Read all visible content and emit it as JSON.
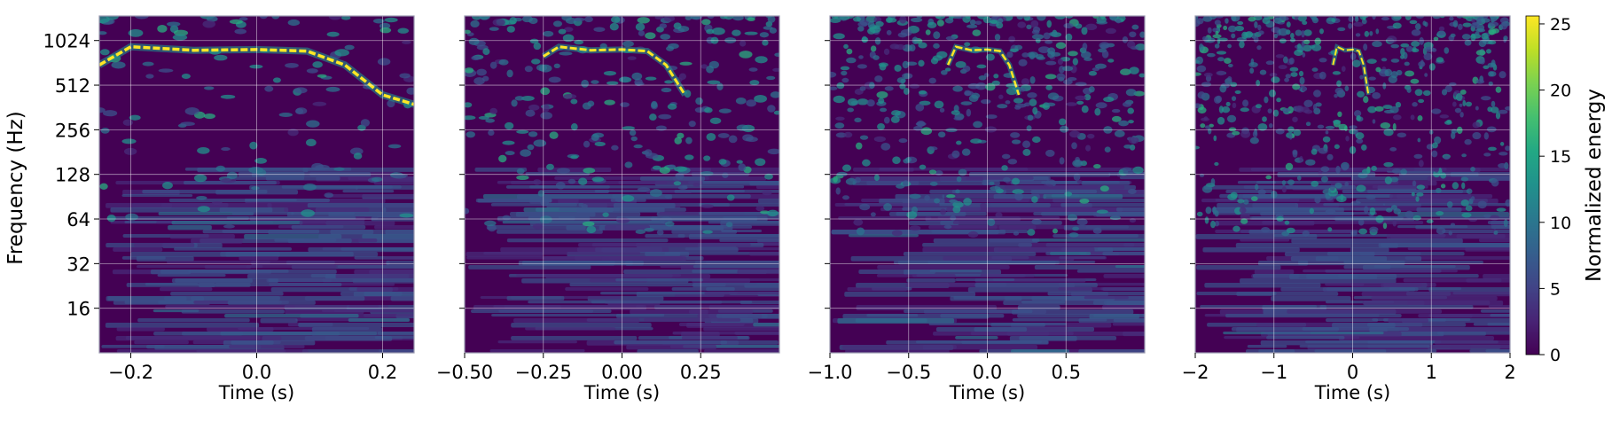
{
  "chart_data": {
    "type": "heatmap",
    "shared": {
      "ylabel": "Frequency (Hz)",
      "ylog_base": 2,
      "ylim": [
        8,
        1500
      ],
      "yticks": [
        16,
        32,
        64,
        128,
        256,
        512,
        1024
      ],
      "grid": true,
      "colormap": "viridis",
      "colorbar": {
        "label": "Normalized energy",
        "range": [
          0,
          25.6
        ],
        "ticks": [
          0,
          5,
          10,
          15,
          20,
          25
        ]
      }
    },
    "panels": [
      {
        "xlabel": "Time (s)",
        "xlim": [
          -0.25,
          0.25
        ],
        "xticks": [
          -0.2,
          0.0,
          0.2
        ],
        "xtick_labels": [
          "−0.2",
          "0.0",
          "0.2"
        ],
        "ridge": [
          [
            -0.25,
            700
          ],
          [
            -0.2,
            930
          ],
          [
            -0.1,
            880
          ],
          [
            0.0,
            890
          ],
          [
            0.08,
            870
          ],
          [
            0.14,
            700
          ],
          [
            0.2,
            440
          ],
          [
            0.25,
            380
          ]
        ]
      },
      {
        "xlabel": "Time (s)",
        "xlim": [
          -0.5,
          0.5
        ],
        "xticks": [
          -0.5,
          -0.25,
          0.0,
          0.25
        ],
        "xtick_labels": [
          "−0.50",
          "−0.25",
          "0.00",
          "0.25"
        ],
        "ridge": [
          [
            -0.25,
            800
          ],
          [
            -0.2,
            930
          ],
          [
            -0.1,
            880
          ],
          [
            0.0,
            890
          ],
          [
            0.08,
            870
          ],
          [
            0.14,
            700
          ],
          [
            0.2,
            440
          ]
        ]
      },
      {
        "xlabel": "Time (s)",
        "xlim": [
          -1.0,
          1.0
        ],
        "xticks": [
          -1.0,
          -0.5,
          0.0,
          0.5
        ],
        "xtick_labels": [
          "−1.0",
          "−0.5",
          "0.0",
          "0.5"
        ],
        "ridge": [
          [
            -0.25,
            700
          ],
          [
            -0.2,
            930
          ],
          [
            -0.1,
            880
          ],
          [
            0.0,
            890
          ],
          [
            0.08,
            870
          ],
          [
            0.14,
            700
          ],
          [
            0.2,
            440
          ]
        ]
      },
      {
        "xlabel": "Time (s)",
        "xlim": [
          -2,
          2
        ],
        "xticks": [
          -2,
          -1,
          0,
          1,
          2
        ],
        "xtick_labels": [
          "−2",
          "−1",
          "0",
          "1",
          "2"
        ],
        "ridge": [
          [
            -0.25,
            700
          ],
          [
            -0.2,
            930
          ],
          [
            -0.1,
            880
          ],
          [
            0.0,
            890
          ],
          [
            0.08,
            870
          ],
          [
            0.14,
            700
          ],
          [
            0.2,
            440
          ]
        ]
      }
    ]
  }
}
